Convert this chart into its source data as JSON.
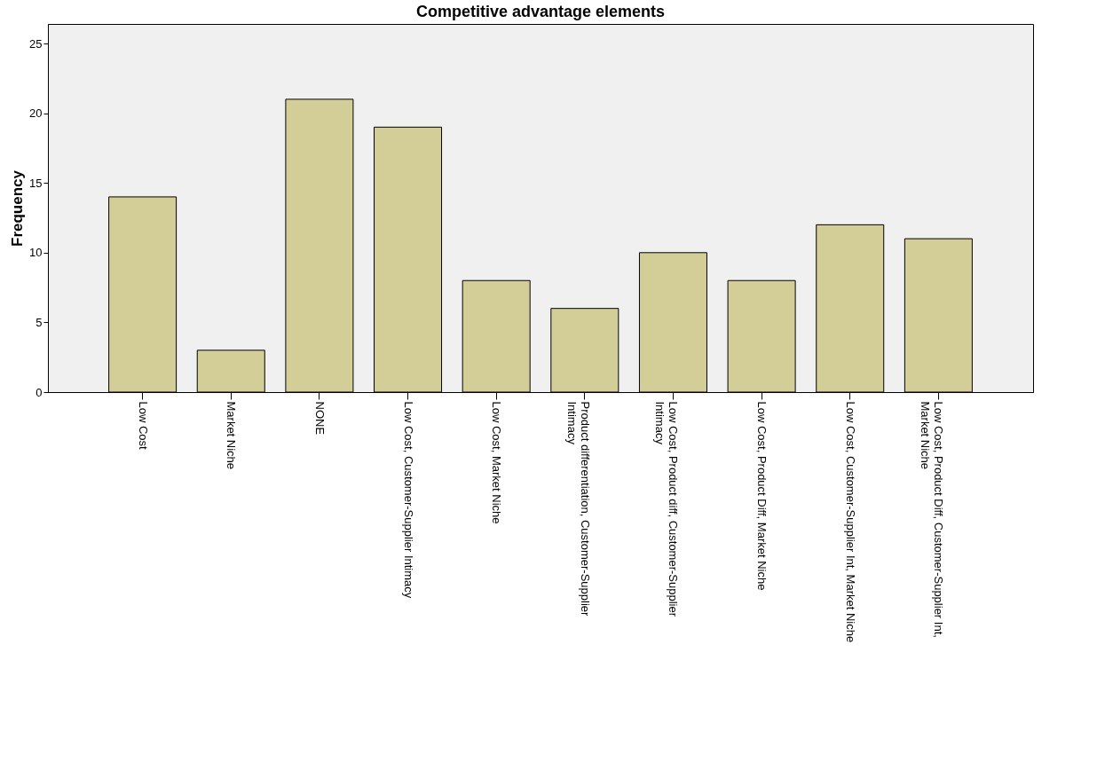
{
  "chart_data": {
    "type": "bar",
    "title": "Competitive advantage elements",
    "ylabel": "Frequency",
    "categories": [
      "Low Cost",
      "Market Niche",
      "NONE",
      "Low Cost, Customer-Supplier Intimacy",
      "Low Cost, Market Niche",
      "Product differentiation, Customer-Supplier Intimacy",
      "Low Cost, Product diff, Customer-Supplier Intimacy",
      "Low Cost, Product Diff, Market Niche",
      "Low Cost, Customer-Supplier Int, Market Niche",
      "Low Cost, Product Diff, Customer-Supplier Int, Market Niche"
    ],
    "values": [
      14,
      3,
      21,
      19,
      8,
      6,
      10,
      8,
      12,
      11
    ],
    "color": "#d3ce97",
    "ylim": [
      0,
      26.4
    ],
    "yticks": [
      0,
      5,
      10,
      15,
      20,
      25
    ],
    "grid": false
  }
}
